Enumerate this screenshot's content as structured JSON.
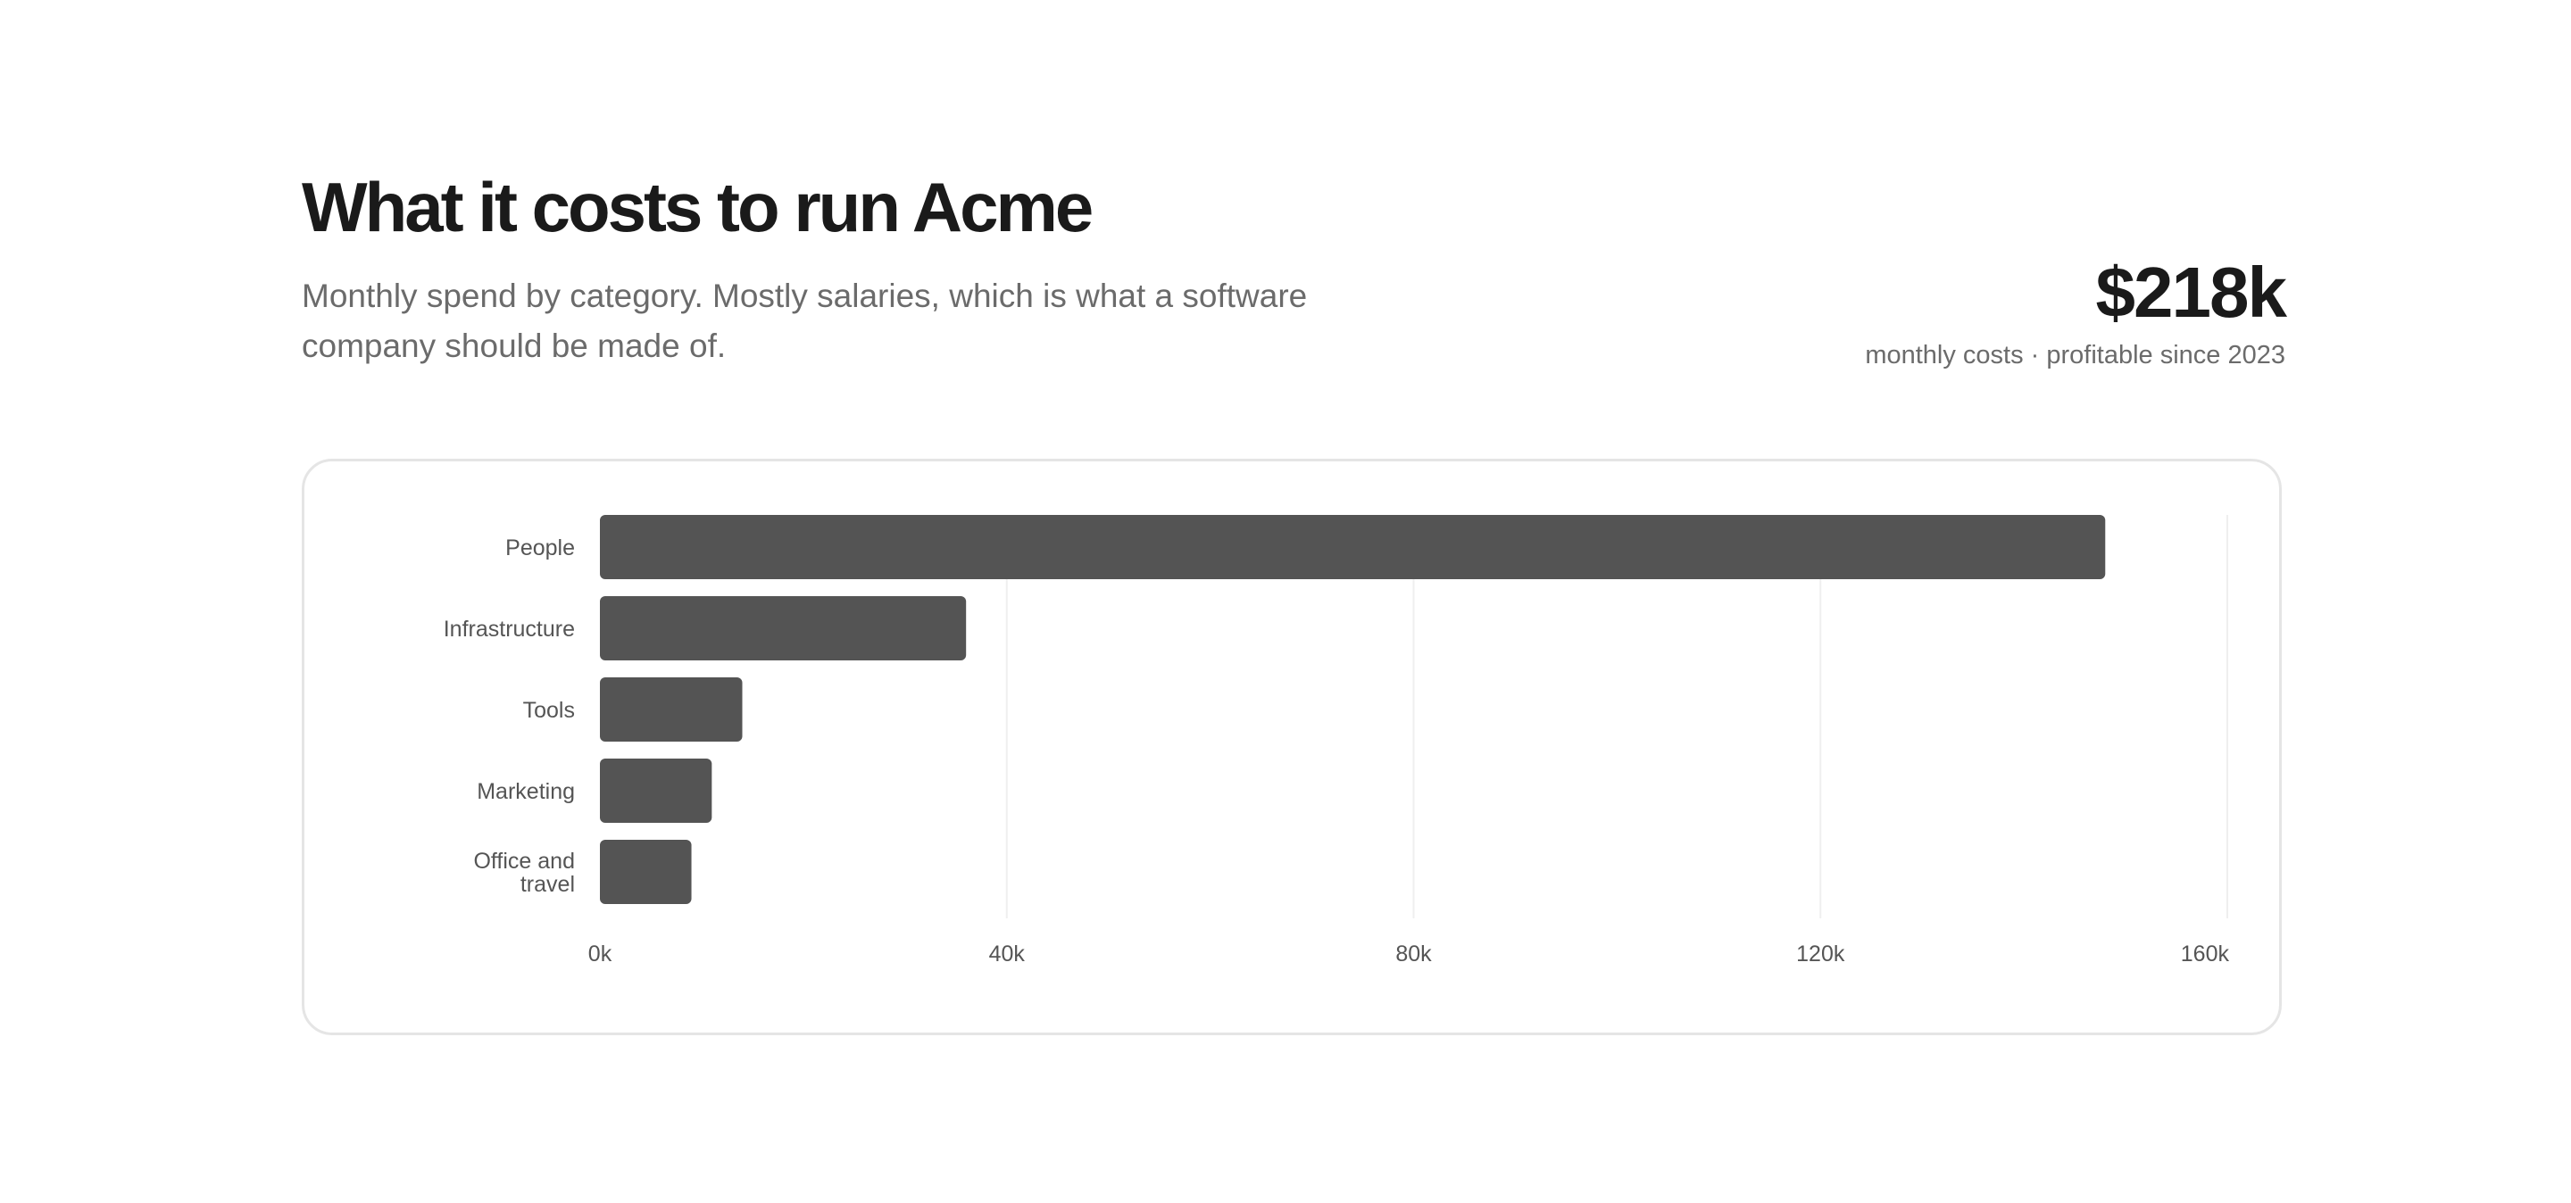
{
  "header": {
    "title": "What it costs to run Acme",
    "subtitle": "Monthly spend by category. Mostly salaries, which is what a software company should be made of."
  },
  "stat": {
    "value": "$218k",
    "caption": "monthly costs · profitable since 2023"
  },
  "colors": {
    "bar": "#545454",
    "grid": "#efefef",
    "text": "#1a1a1a",
    "muted": "#6b6b6b"
  },
  "chart_data": {
    "type": "bar",
    "orientation": "horizontal",
    "categories": [
      "People",
      "Infrastructure",
      "Tools",
      "Marketing",
      "Office and travel"
    ],
    "values": [
      148,
      36,
      14,
      11,
      9
    ],
    "unit": "k",
    "xlim": [
      0,
      160
    ],
    "xticks": [
      0,
      40,
      80,
      120,
      160
    ],
    "xtick_labels": [
      "0k",
      "40k",
      "80k",
      "120k",
      "160k"
    ],
    "grid": "vertical",
    "legend": "none"
  }
}
